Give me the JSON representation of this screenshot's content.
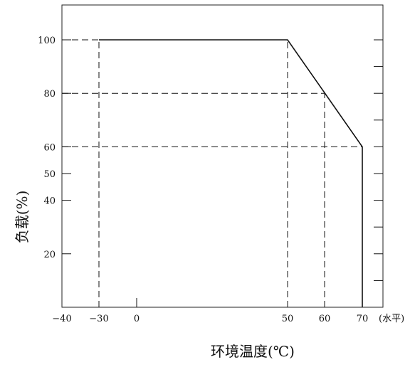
{
  "chart_data": {
    "type": "line",
    "xlabel": "环境温度(℃)",
    "ylabel": "负载(%)",
    "x_unit_note": "(水平)",
    "xlim": [
      -40,
      70
    ],
    "ylim": [
      0,
      115
    ],
    "xticks": [
      -40,
      -30,
      0,
      50,
      60,
      70
    ],
    "yticks": [
      20,
      40,
      50,
      60,
      80,
      100
    ],
    "right_ticks": [
      10,
      20,
      30,
      40,
      50,
      60,
      70,
      80,
      90,
      100
    ],
    "series": [
      {
        "x": [
          -30,
          50,
          70,
          70
        ],
        "y": [
          100,
          100,
          60,
          0
        ]
      }
    ],
    "reference_lines": [
      {
        "orientation": "h",
        "value": 100,
        "from": -40,
        "to": -30
      },
      {
        "orientation": "h",
        "value": 80,
        "from": -40,
        "to": 60
      },
      {
        "orientation": "h",
        "value": 60,
        "from": -40,
        "to": 70
      },
      {
        "orientation": "v",
        "value": -30,
        "from": 0,
        "to": 100
      },
      {
        "orientation": "v",
        "value": 50,
        "from": 0,
        "to": 100
      },
      {
        "orientation": "v",
        "value": 60,
        "from": 0,
        "to": 80
      }
    ],
    "extra_x_marks": [
      0
    ],
    "grid": false
  },
  "colors": {
    "line": "#111111",
    "frame": "#222222"
  }
}
